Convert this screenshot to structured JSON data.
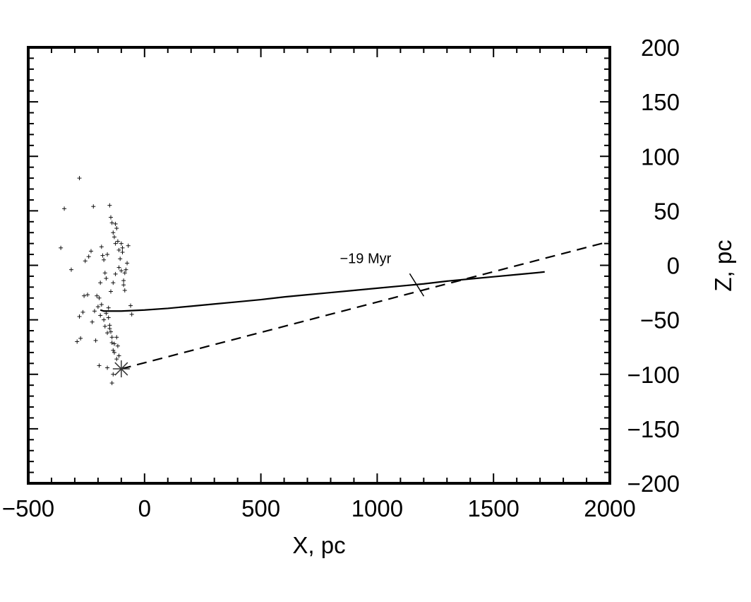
{
  "chart_data": {
    "type": "scatter",
    "title": "",
    "xlabel": "X, pc",
    "ylabel": "Z, pc",
    "xlim": [
      -500,
      2000
    ],
    "ylim": [
      -200,
      200
    ],
    "x_ticks": [
      -500,
      0,
      500,
      1000,
      1500,
      2000
    ],
    "x_tick_labels": [
      "−500",
      "0",
      "500",
      "1000",
      "1500",
      "2000"
    ],
    "y_ticks": [
      -200,
      -150,
      -100,
      -50,
      0,
      50,
      100,
      150,
      200
    ],
    "y_tick_labels": [
      "−200",
      "−150",
      "−100",
      "−50",
      "0",
      "50",
      "100",
      "150",
      "200"
    ],
    "y_axis_side": "right",
    "grid": false,
    "legend": null,
    "annotations": [
      {
        "text": "−19 Myr",
        "x": 950,
        "y": 2
      },
      {
        "text": "slash marker",
        "x": 1170,
        "y": -18
      }
    ],
    "series": [
      {
        "style": "solid-line",
        "x": [
          -190,
          -175,
          -160,
          -130,
          -100,
          0,
          100,
          200,
          300,
          400,
          500,
          600,
          700,
          800,
          900,
          1000,
          1100,
          1200,
          1300,
          1400,
          1500,
          1600,
          1700,
          1720
        ],
        "y": [
          -41,
          -42,
          -42,
          -42,
          -42,
          -41,
          -39.5,
          -37.5,
          -35.5,
          -33.5,
          -31.5,
          -29,
          -27,
          -25,
          -23,
          -21,
          -19,
          -17,
          -14.5,
          -12.5,
          -10.5,
          -8.5,
          -6.5,
          -6
        ]
      },
      {
        "style": "dashed-line",
        "x": [
          -100,
          2000
        ],
        "y": [
          -95,
          22
        ]
      },
      {
        "style": "star-marker",
        "x": [
          -100
        ],
        "y": [
          -95
        ]
      },
      {
        "style": "plus-marker",
        "x": [
          -280,
          -345,
          -360,
          -315,
          -220,
          -230,
          -245,
          -260,
          -265,
          -280,
          -275,
          -290,
          -255,
          -240,
          -210,
          -200,
          -195,
          -190,
          -185,
          -180,
          -175,
          -170,
          -165,
          -160,
          -155,
          -150,
          -145,
          -140,
          -135,
          -130,
          -125,
          -120,
          -115,
          -110,
          -105,
          -100,
          -95,
          -90,
          -85,
          -80,
          -75,
          -70,
          -60,
          -55,
          -150,
          -145,
          -140,
          -135,
          -130,
          -125,
          -190,
          -170,
          -160,
          -150,
          -140,
          -130,
          -120,
          -115,
          -110,
          -145,
          -135,
          -125,
          -155,
          -165,
          -175,
          -185,
          -195,
          -205,
          -215,
          -225,
          -110,
          -100,
          -95,
          -90,
          -85,
          -135,
          -140,
          -160,
          -120
        ],
        "y": [
          80,
          52,
          16,
          -4,
          54,
          13,
          -27,
          -28,
          -43,
          -47,
          -67,
          -70,
          4,
          8,
          -69,
          -38,
          -92,
          -46,
          17,
          9,
          5,
          -7,
          -12,
          10,
          -48,
          -55,
          -61,
          -71,
          -78,
          -80,
          38,
          34,
          22,
          14,
          6,
          20,
          16,
          -14,
          -7,
          -4,
          2,
          18,
          -37,
          -45,
          55,
          44,
          39,
          30,
          26,
          20,
          -16,
          -56,
          -62,
          -58,
          -66,
          -72,
          -66,
          -74,
          -83,
          -24,
          -16,
          -8,
          -39,
          -44,
          -50,
          -36,
          -30,
          -28,
          -42,
          -52,
          -2,
          -5,
          12,
          -18,
          -23,
          -100,
          -108,
          -94,
          -86
        ]
      }
    ]
  }
}
